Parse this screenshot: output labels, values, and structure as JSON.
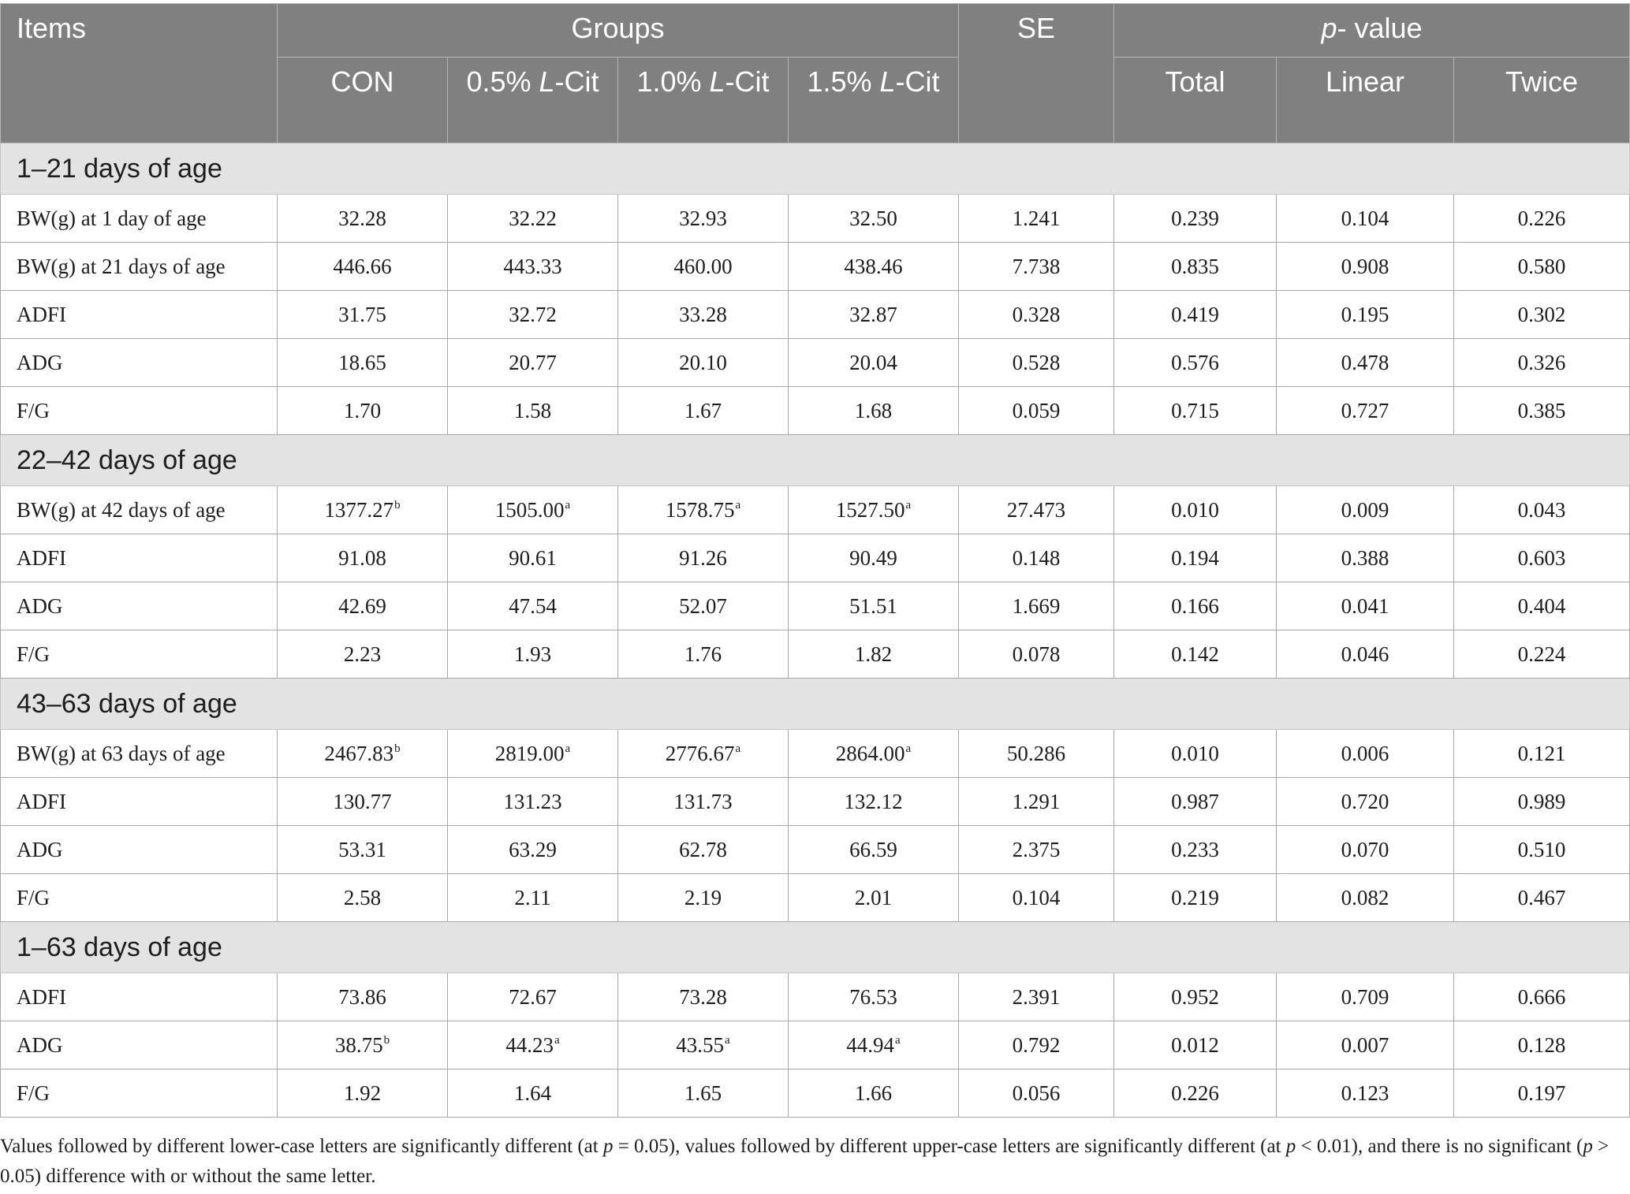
{
  "table": {
    "header": {
      "items": "Items",
      "groups": "Groups",
      "se": "SE",
      "p_prefix": "p",
      "p_suffix": "- value",
      "con": "CON",
      "g05_a": "0.5% ",
      "g05_b": "L",
      "g05_c": "-Cit",
      "g10_a": "1.0% ",
      "g10_b": "L",
      "g10_c": "-Cit",
      "g15_a": "1.5% ",
      "g15_b": "L",
      "g15_c": "-Cit",
      "total": "Total",
      "linear": "Linear",
      "twice": "Twice"
    },
    "sections": [
      {
        "title": "1–21 days of age",
        "rows": [
          {
            "item": "BW(g) at 1 day of age",
            "con": "32.28",
            "con_sup": "",
            "g05": "32.22",
            "g05_sup": "",
            "g10": "32.93",
            "g10_sup": "",
            "g15": "32.50",
            "g15_sup": "",
            "se": "1.241",
            "total": "0.239",
            "linear": "0.104",
            "twice": "0.226"
          },
          {
            "item": "BW(g) at 21 days of age",
            "con": "446.66",
            "con_sup": "",
            "g05": "443.33",
            "g05_sup": "",
            "g10": "460.00",
            "g10_sup": "",
            "g15": "438.46",
            "g15_sup": "",
            "se": "7.738",
            "total": "0.835",
            "linear": "0.908",
            "twice": "0.580"
          },
          {
            "item": "ADFI",
            "con": "31.75",
            "con_sup": "",
            "g05": "32.72",
            "g05_sup": "",
            "g10": "33.28",
            "g10_sup": "",
            "g15": "32.87",
            "g15_sup": "",
            "se": "0.328",
            "total": "0.419",
            "linear": "0.195",
            "twice": "0.302"
          },
          {
            "item": "ADG",
            "con": "18.65",
            "con_sup": "",
            "g05": "20.77",
            "g05_sup": "",
            "g10": "20.10",
            "g10_sup": "",
            "g15": "20.04",
            "g15_sup": "",
            "se": "0.528",
            "total": "0.576",
            "linear": "0.478",
            "twice": "0.326"
          },
          {
            "item": "F/G",
            "con": "1.70",
            "con_sup": "",
            "g05": "1.58",
            "g05_sup": "",
            "g10": "1.67",
            "g10_sup": "",
            "g15": "1.68",
            "g15_sup": "",
            "se": "0.059",
            "total": "0.715",
            "linear": "0.727",
            "twice": "0.385"
          }
        ]
      },
      {
        "title": "22–42 days of age",
        "rows": [
          {
            "item": "BW(g) at 42 days of age",
            "con": "1377.27",
            "con_sup": "b",
            "g05": "1505.00",
            "g05_sup": "a",
            "g10": "1578.75",
            "g10_sup": "a",
            "g15": "1527.50",
            "g15_sup": "a",
            "se": "27.473",
            "total": "0.010",
            "linear": "0.009",
            "twice": "0.043"
          },
          {
            "item": "ADFI",
            "con": "91.08",
            "con_sup": "",
            "g05": "90.61",
            "g05_sup": "",
            "g10": "91.26",
            "g10_sup": "",
            "g15": "90.49",
            "g15_sup": "",
            "se": "0.148",
            "total": "0.194",
            "linear": "0.388",
            "twice": "0.603"
          },
          {
            "item": "ADG",
            "con": "42.69",
            "con_sup": "",
            "g05": "47.54",
            "g05_sup": "",
            "g10": "52.07",
            "g10_sup": "",
            "g15": "51.51",
            "g15_sup": "",
            "se": "1.669",
            "total": "0.166",
            "linear": "0.041",
            "twice": "0.404"
          },
          {
            "item": "F/G",
            "con": "2.23",
            "con_sup": "",
            "g05": "1.93",
            "g05_sup": "",
            "g10": "1.76",
            "g10_sup": "",
            "g15": "1.82",
            "g15_sup": "",
            "se": "0.078",
            "total": "0.142",
            "linear": "0.046",
            "twice": "0.224"
          }
        ]
      },
      {
        "title": "43–63 days of age",
        "rows": [
          {
            "item": "BW(g) at 63 days of age",
            "con": "2467.83",
            "con_sup": "b",
            "g05": "2819.00",
            "g05_sup": "a",
            "g10": "2776.67",
            "g10_sup": "a",
            "g15": "2864.00",
            "g15_sup": "a",
            "se": "50.286",
            "total": "0.010",
            "linear": "0.006",
            "twice": "0.121"
          },
          {
            "item": "ADFI",
            "con": "130.77",
            "con_sup": "",
            "g05": "131.23",
            "g05_sup": "",
            "g10": "131.73",
            "g10_sup": "",
            "g15": "132.12",
            "g15_sup": "",
            "se": "1.291",
            "total": "0.987",
            "linear": "0.720",
            "twice": "0.989"
          },
          {
            "item": "ADG",
            "con": "53.31",
            "con_sup": "",
            "g05": "63.29",
            "g05_sup": "",
            "g10": "62.78",
            "g10_sup": "",
            "g15": "66.59",
            "g15_sup": "",
            "se": "2.375",
            "total": "0.233",
            "linear": "0.070",
            "twice": "0.510"
          },
          {
            "item": "F/G",
            "con": "2.58",
            "con_sup": "",
            "g05": "2.11",
            "g05_sup": "",
            "g10": "2.19",
            "g10_sup": "",
            "g15": "2.01",
            "g15_sup": "",
            "se": "0.104",
            "total": "0.219",
            "linear": "0.082",
            "twice": "0.467"
          }
        ]
      },
      {
        "title": "1–63 days of age",
        "rows": [
          {
            "item": "ADFI",
            "con": "73.86",
            "con_sup": "",
            "g05": "72.67",
            "g05_sup": "",
            "g10": "73.28",
            "g10_sup": "",
            "g15": "76.53",
            "g15_sup": "",
            "se": "2.391",
            "total": "0.952",
            "linear": "0.709",
            "twice": "0.666"
          },
          {
            "item": "ADG",
            "con": "38.75",
            "con_sup": "b",
            "g05": "44.23",
            "g05_sup": "a",
            "g10": "43.55",
            "g10_sup": "a",
            "g15": "44.94",
            "g15_sup": "a",
            "se": "0.792",
            "total": "0.012",
            "linear": "0.007",
            "twice": "0.128"
          },
          {
            "item": "F/G",
            "con": "1.92",
            "con_sup": "",
            "g05": "1.64",
            "g05_sup": "",
            "g10": "1.65",
            "g10_sup": "",
            "g15": "1.66",
            "g15_sup": "",
            "se": "0.056",
            "total": "0.226",
            "linear": "0.123",
            "twice": "0.197"
          }
        ]
      }
    ]
  },
  "footnote": {
    "t1": "Values followed by different lower-case letters are significantly different (at ",
    "p1": "p",
    "t2": " = 0.05), values followed by different upper-case letters are significantly different (at ",
    "p2": "p",
    "t3": " < 0.01), and there is no significant (",
    "p3": "p",
    "t4": " > 0.05) difference with or without the same letter."
  }
}
